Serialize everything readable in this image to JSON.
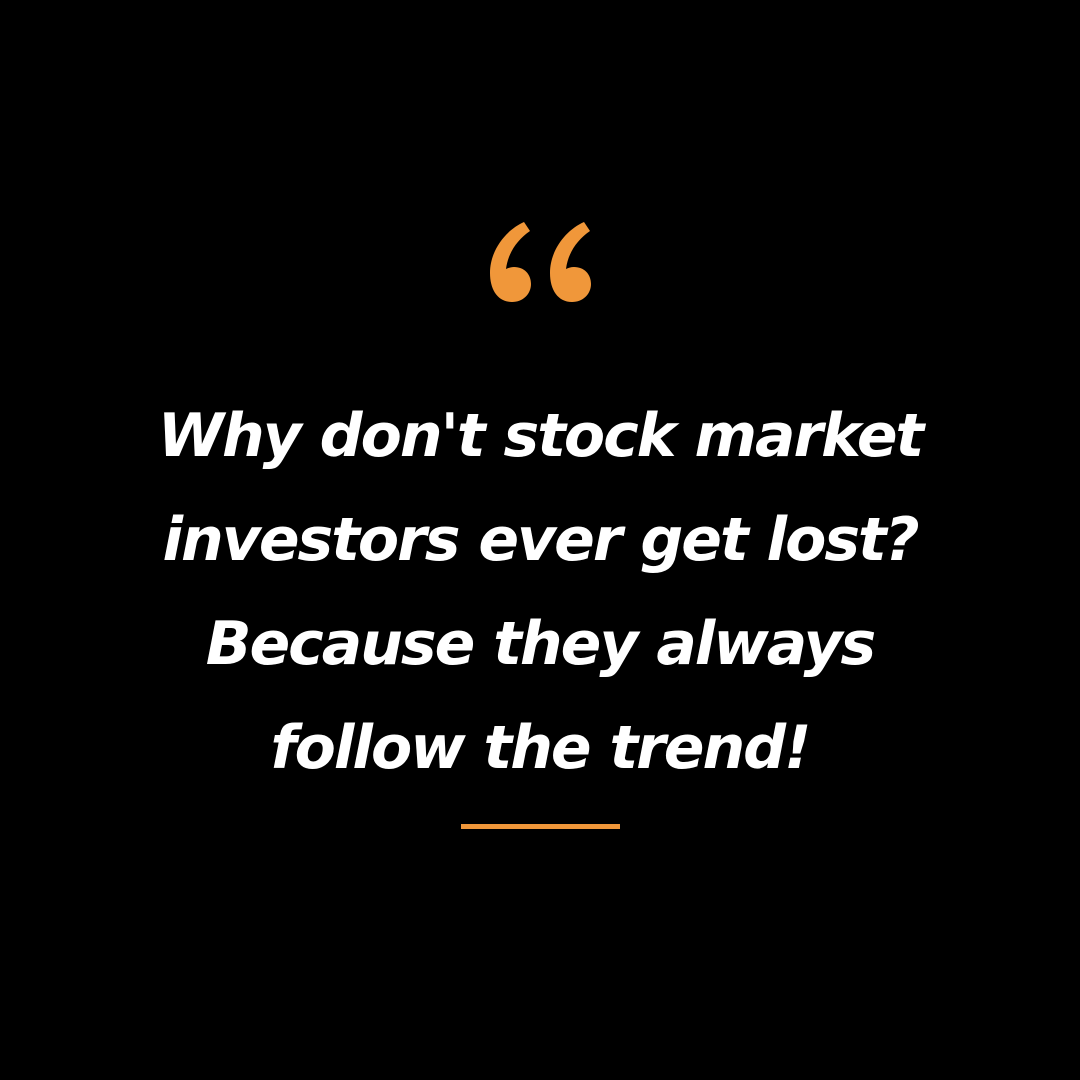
{
  "quote": {
    "mark_icon": "open-double-quote-icon",
    "lines": [
      "Why don't stock market",
      "investors ever get lost?",
      "Because they always",
      "follow the trend!"
    ]
  },
  "colors": {
    "background": "#000000",
    "text": "#ffffff",
    "accent": "#F0973A"
  }
}
